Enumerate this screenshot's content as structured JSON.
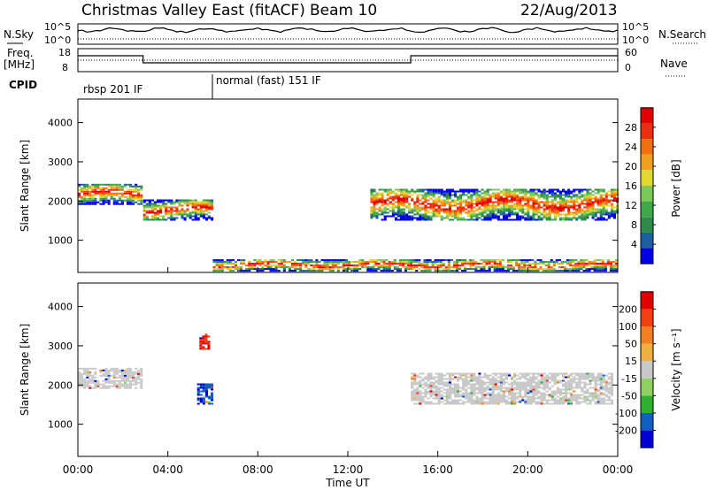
{
  "header": {
    "title": "Christmas Valley East (fitACF)",
    "beam": "Beam 10",
    "date": "22/Aug/2013"
  },
  "strips": {
    "nsky_label": "N.Sky",
    "nsky_ticks": [
      "10^5",
      "10^0"
    ],
    "nsearch_label": "N.Search",
    "nsearch_ticks": [
      "10^5",
      "10^0"
    ],
    "freq_label_1": "Freq.",
    "freq_label_2": "[MHz]",
    "freq_ticks": [
      "18",
      "8"
    ],
    "nave_label": "Nave",
    "nave_ticks": [
      "60",
      "0"
    ],
    "cpid_label": "CPID",
    "cpid_modes": [
      {
        "label": "rbsp 201 IF",
        "start_hour": 0.0,
        "end_hour": 6.0
      },
      {
        "label": "normal (fast) 151 IF",
        "start_hour": 6.0,
        "end_hour": 24.0
      }
    ]
  },
  "x_axis": {
    "label": "Time UT",
    "ticks": [
      "00:00",
      "04:00",
      "08:00",
      "12:00",
      "16:00",
      "20:00",
      "00:00"
    ],
    "tick_hours": [
      0,
      4,
      8,
      12,
      16,
      20,
      24
    ]
  },
  "chart_data": [
    {
      "type": "heatmap",
      "panel": "power",
      "ylabel": "Slant Range [km]",
      "yticks": [
        "1000",
        "2000",
        "3000",
        "4000"
      ],
      "ylim": [
        180,
        4600
      ],
      "xlim_hours": [
        0,
        24
      ],
      "colorbar_label": "Power [dB]",
      "colorbar_ticks": [
        "4",
        "8",
        "12",
        "16",
        "20",
        "24",
        "28"
      ],
      "colorbar_range": [
        0,
        30
      ],
      "colors": [
        "#0000e0",
        "#1e5fa0",
        "#2e8a4c",
        "#3fa84a",
        "#7dc85a",
        "#e0d830",
        "#f0a020",
        "#f07010",
        "#e83010",
        "#e00000"
      ],
      "echo_regions": [
        {
          "name": "early-band",
          "start_hour": 0.0,
          "end_hour": 2.8,
          "range_km": [
            1900,
            2400
          ]
        },
        {
          "name": "mid-band",
          "start_hour": 2.9,
          "end_hour": 6.0,
          "range_km": [
            1500,
            2000
          ]
        },
        {
          "name": "late-band",
          "start_hour": 13.0,
          "end_hour": 24.0,
          "range_km": [
            1500,
            2300
          ]
        },
        {
          "name": "near-range",
          "start_hour": 6.0,
          "end_hour": 24.0,
          "range_km": [
            200,
            500
          ]
        }
      ]
    },
    {
      "type": "heatmap",
      "panel": "velocity",
      "ylabel": "Slant Range [km]",
      "yticks": [
        "1000",
        "2000",
        "3000",
        "4000"
      ],
      "ylim": [
        180,
        4600
      ],
      "xlim_hours": [
        0,
        24
      ],
      "colorbar_label": "Velocity [m s⁻¹]",
      "colorbar_ticks": [
        "200",
        "100",
        "50",
        "15",
        "-15",
        "-50",
        "-100",
        "-200"
      ],
      "colorbar_range": [
        -250,
        250
      ],
      "colors": [
        "#e00000",
        "#f04010",
        "#f08020",
        "#f0b040",
        "#c8c8c8",
        "#90d060",
        "#30b030",
        "#1060c0",
        "#0000d0"
      ],
      "echo_regions": [
        {
          "name": "early-ground-scatter",
          "start_hour": 0.0,
          "end_hour": 2.8,
          "range_km": [
            1900,
            2400
          ]
        },
        {
          "name": "negative-velocity-patch",
          "start_hour": 5.4,
          "end_hour": 5.8,
          "range_km": [
            2900,
            3300
          ]
        },
        {
          "name": "positive-velocity-patch",
          "start_hour": 5.3,
          "end_hour": 6.0,
          "range_km": [
            1500,
            2000
          ]
        },
        {
          "name": "late-ground-scatter",
          "start_hour": 14.8,
          "end_hour": 23.8,
          "range_km": [
            1500,
            2300
          ]
        }
      ]
    }
  ]
}
